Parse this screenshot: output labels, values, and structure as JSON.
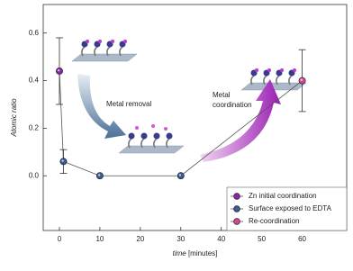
{
  "chart_data": {
    "type": "scatter",
    "xlabel": {
      "var": "time",
      "unit": "[minutes]"
    },
    "ylabel": "Atomic ratio",
    "xlim": [
      -4,
      71
    ],
    "ylim": [
      -0.23,
      0.72
    ],
    "xticks": [
      0,
      10,
      20,
      30,
      40,
      50,
      60
    ],
    "yticks": [
      {
        "value": 0,
        "label": "0.0"
      },
      0.2,
      0.4,
      0.6
    ],
    "connect": true,
    "line_color": "#555555",
    "legend": "lower right",
    "series": [
      {
        "name": "Zn initial coordination",
        "color": "#8e24aa",
        "x": [
          0
        ],
        "values": [
          0.44
        ],
        "errors": [
          0.14
        ]
      },
      {
        "name": "Surface exposed to EDTA",
        "color": "#3c5a99",
        "x": [
          1,
          10,
          30
        ],
        "values": [
          0.06,
          0,
          0
        ],
        "errors": [
          0.05,
          null,
          null
        ]
      },
      {
        "name": "Re-coordination",
        "color": "#d9439a",
        "x": [
          60
        ],
        "values": [
          0.4
        ],
        "errors": [
          0.13
        ]
      }
    ],
    "annotations": [
      {
        "lines": [
          "Metal removal"
        ]
      },
      {
        "lines": [
          "Metal",
          "coordination"
        ]
      }
    ]
  }
}
